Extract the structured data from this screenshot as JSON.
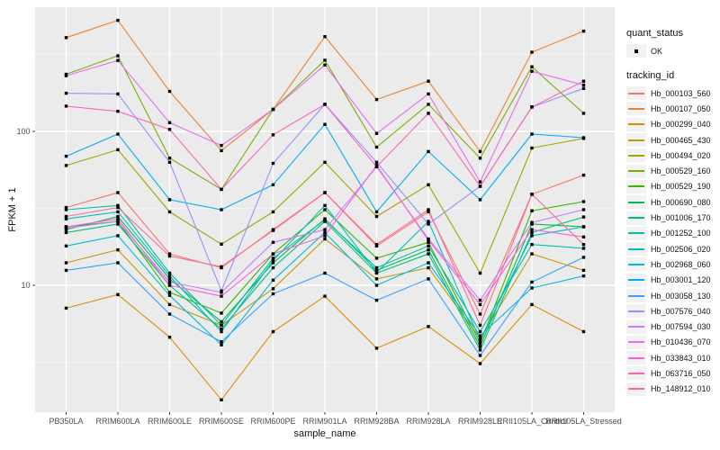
{
  "chart_data": {
    "type": "line",
    "title": "",
    "xlabel": "sample_name",
    "ylabel": "FPKM + 1",
    "y_scale": "log10",
    "ylim": [
      1.5,
      700
    ],
    "y_major_ticks": [
      10,
      100
    ],
    "y_minor_gridlines": [
      3.162,
      31.62,
      316.2
    ],
    "grid": "on",
    "legend_position": "right",
    "point_marker": "black-square",
    "categories": [
      "PB350LA",
      "RRIM600LA",
      "RRIM600LE",
      "RRIM600SE",
      "RRIM600PE",
      "RRIM901LA",
      "RRIM928BA",
      "RRIM928LA",
      "RRIM928LE",
      "RRII105LA_Control",
      "RRII105LA_Stressed"
    ],
    "quant_status": {
      "title": "quant_status",
      "items": [
        {
          "label": "OK",
          "marker": "black-point"
        }
      ]
    },
    "tracking_legend_title": "tracking_id",
    "series": [
      {
        "name": "Hb_000103_560",
        "color": "#F8766D",
        "values": [
          32,
          40,
          16,
          13,
          23,
          40,
          18,
          30,
          6.5,
          39,
          52
        ]
      },
      {
        "name": "Hb_000107_050",
        "color": "#EA8331",
        "values": [
          407,
          527,
          182,
          75,
          139,
          413,
          161,
          212,
          74,
          327,
          448
        ]
      },
      {
        "name": "Hb_000299_040",
        "color": "#D89000",
        "values": [
          7.1,
          8.7,
          4.6,
          1.8,
          5.0,
          8.5,
          3.9,
          5.4,
          3.1,
          7.5,
          5.0
        ]
      },
      {
        "name": "Hb_000465_430",
        "color": "#C09B00",
        "values": [
          14,
          17,
          7.5,
          5.5,
          9.5,
          20,
          11,
          13,
          4.5,
          16,
          12.5
        ]
      },
      {
        "name": "Hb_000494_020",
        "color": "#A3A500",
        "values": [
          60,
          76,
          30,
          18.5,
          30,
          63,
          28,
          45,
          12,
          78,
          90
        ]
      },
      {
        "name": "Hb_000529_160",
        "color": "#7CAE00",
        "values": [
          235,
          310,
          67,
          42,
          139,
          290,
          79,
          150,
          67,
          263,
          131
        ]
      },
      {
        "name": "Hb_000529_190",
        "color": "#39B600",
        "values": [
          24,
          26,
          9,
          6.6,
          16,
          31,
          15,
          19,
          4.2,
          30.5,
          35
        ]
      },
      {
        "name": "Hb_000690_080",
        "color": "#00BB4E",
        "values": [
          23,
          28,
          11,
          5.8,
          14,
          27,
          12.5,
          17,
          4.0,
          25,
          24
        ]
      },
      {
        "name": "Hb_001006_170",
        "color": "#00BF7D",
        "values": [
          22,
          25,
          10,
          5.2,
          13,
          26,
          12,
          16,
          3.8,
          22,
          27.8
        ]
      },
      {
        "name": "Hb_001252_100",
        "color": "#00C1A3",
        "values": [
          31,
          33,
          12,
          5.5,
          15,
          26.6,
          13,
          18,
          5.0,
          18.4,
          17.4
        ]
      },
      {
        "name": "Hb_002506_020",
        "color": "#00BFC4",
        "values": [
          27,
          30,
          11.5,
          5.0,
          14.5,
          33,
          12.1,
          26,
          4.4,
          21,
          24
        ]
      },
      {
        "name": "Hb_002968_060",
        "color": "#00BAE0",
        "values": [
          18,
          21,
          8.6,
          4.1,
          10.8,
          22,
          10,
          14,
          4.7,
          9.6,
          11.5
        ]
      },
      {
        "name": "Hb_003001_120",
        "color": "#00B0F6",
        "values": [
          69,
          96,
          36,
          31,
          45,
          111,
          30,
          74,
          36,
          96,
          91
        ]
      },
      {
        "name": "Hb_003058_130",
        "color": "#35A2FF",
        "values": [
          12.5,
          14,
          6.5,
          4.3,
          8.8,
          12,
          8,
          11,
          3.5,
          10.5,
          15.2
        ]
      },
      {
        "name": "Hb_007576_040",
        "color": "#9590FF",
        "values": [
          177,
          175,
          63,
          9.2,
          62,
          150,
          63,
          25,
          44,
          144,
          190
        ]
      },
      {
        "name": "Hb_007594_030",
        "color": "#C77CFF",
        "values": [
          23.5,
          26,
          10.5,
          9.0,
          19,
          23,
          59,
          20,
          8,
          25.6,
          31
        ]
      },
      {
        "name": "Hb_010436_070",
        "color": "#E76BF3",
        "values": [
          230,
          289,
          114,
          81,
          139,
          270,
          97,
          175,
          47,
          246,
          200
        ]
      },
      {
        "name": "Hb_033843_010",
        "color": "#FA62DB",
        "values": [
          24,
          27,
          10,
          8.5,
          16,
          21,
          60,
          19.6,
          7.5,
          23,
          20.6
        ]
      },
      {
        "name": "Hb_063716_050",
        "color": "#FF62BC",
        "values": [
          146,
          135,
          103,
          42,
          95,
          150,
          59,
          131,
          44,
          144,
          212
        ]
      },
      {
        "name": "Hb_148912_010",
        "color": "#FF6A98",
        "values": [
          28,
          32,
          15.5,
          13.2,
          22.7,
          40,
          18.4,
          31,
          5.5,
          39,
          18.4
        ]
      }
    ]
  },
  "colors": {
    "page_bg": "#FFFFFF",
    "panel_bg": "#EBEBEB",
    "grid_major": "#FFFFFF",
    "legend_key_bg": "#F2F2F2",
    "tick_label": "#4D4D4D",
    "tick_mark": "#333333",
    "axis_title": "#111111",
    "point": "#000000"
  }
}
